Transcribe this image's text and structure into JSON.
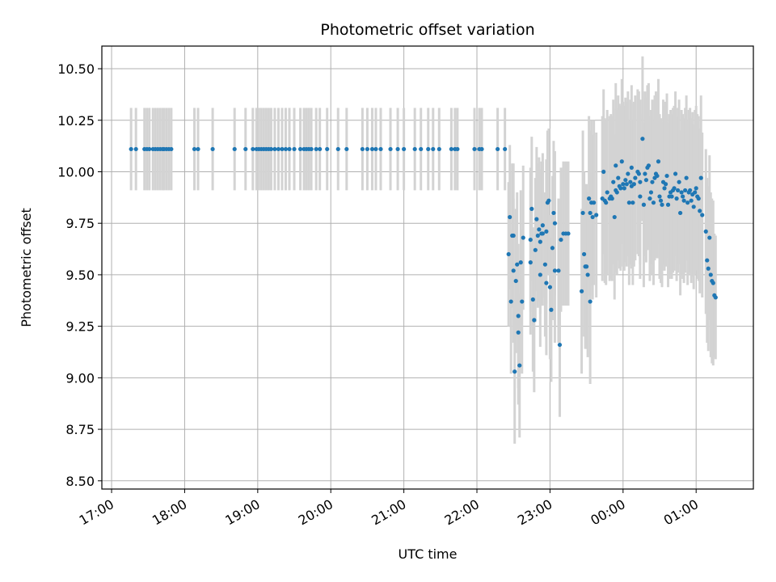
{
  "chart_data": {
    "type": "scatter",
    "title": "Photometric offset variation",
    "xlabel": "UTC time",
    "ylabel": "Photometric offset",
    "x_unit": "minutes after 17:00 UTC (x-axis wraps past midnight)",
    "xlim": [
      -8,
      527
    ],
    "ylim": [
      8.46,
      10.61
    ],
    "xticks": [
      {
        "x": 0,
        "label": "17:00"
      },
      {
        "x": 60,
        "label": "18:00"
      },
      {
        "x": 120,
        "label": "19:00"
      },
      {
        "x": 180,
        "label": "20:00"
      },
      {
        "x": 240,
        "label": "21:00"
      },
      {
        "x": 300,
        "label": "22:00"
      },
      {
        "x": 360,
        "label": "23:00"
      },
      {
        "x": 420,
        "label": "00:00"
      },
      {
        "x": 480,
        "label": "01:00"
      }
    ],
    "yticks": [
      {
        "y": 8.5,
        "label": "8.50"
      },
      {
        "y": 8.75,
        "label": "8.75"
      },
      {
        "y": 9.0,
        "label": "9.00"
      },
      {
        "y": 9.25,
        "label": "9.25"
      },
      {
        "y": 9.5,
        "label": "9.50"
      },
      {
        "y": 9.75,
        "label": "9.75"
      },
      {
        "y": 10.0,
        "label": "10.00"
      },
      {
        "y": 10.25,
        "label": "10.25"
      },
      {
        "y": 10.5,
        "label": "10.50"
      }
    ],
    "grid": true,
    "colors": {
      "points": "#1f77b4",
      "errorbars": "#d3d3d3"
    },
    "points": [
      [
        16,
        10.11,
        0.2
      ],
      [
        20,
        10.11,
        0.2
      ],
      [
        27,
        10.11,
        0.2
      ],
      [
        29,
        10.11,
        0.2
      ],
      [
        31,
        10.11,
        0.2
      ],
      [
        34,
        10.11,
        0.2
      ],
      [
        36,
        10.11,
        0.2
      ],
      [
        38,
        10.11,
        0.2
      ],
      [
        40,
        10.11,
        0.2
      ],
      [
        42,
        10.11,
        0.2
      ],
      [
        43,
        10.11,
        0.2
      ],
      [
        45,
        10.11,
        0.2
      ],
      [
        47,
        10.11,
        0.2
      ],
      [
        49,
        10.11,
        0.2
      ],
      [
        68,
        10.11,
        0.2
      ],
      [
        71,
        10.11,
        0.2
      ],
      [
        83,
        10.11,
        0.2
      ],
      [
        101,
        10.11,
        0.2
      ],
      [
        110,
        10.11,
        0.2
      ],
      [
        116,
        10.11,
        0.2
      ],
      [
        119,
        10.11,
        0.2
      ],
      [
        121,
        10.11,
        0.2
      ],
      [
        123,
        10.11,
        0.2
      ],
      [
        125,
        10.11,
        0.2
      ],
      [
        127,
        10.11,
        0.2
      ],
      [
        129,
        10.11,
        0.2
      ],
      [
        131,
        10.11,
        0.2
      ],
      [
        134,
        10.11,
        0.2
      ],
      [
        137,
        10.11,
        0.2
      ],
      [
        140,
        10.11,
        0.2
      ],
      [
        143,
        10.11,
        0.2
      ],
      [
        146,
        10.11,
        0.2
      ],
      [
        150,
        10.11,
        0.2
      ],
      [
        155,
        10.11,
        0.2
      ],
      [
        158,
        10.11,
        0.2
      ],
      [
        160,
        10.11,
        0.2
      ],
      [
        162,
        10.11,
        0.2
      ],
      [
        164,
        10.11,
        0.2
      ],
      [
        168,
        10.11,
        0.2
      ],
      [
        171,
        10.11,
        0.2
      ],
      [
        177,
        10.11,
        0.2
      ],
      [
        186,
        10.11,
        0.2
      ],
      [
        193,
        10.11,
        0.2
      ],
      [
        206,
        10.11,
        0.2
      ],
      [
        210,
        10.11,
        0.2
      ],
      [
        214,
        10.11,
        0.2
      ],
      [
        217,
        10.11,
        0.2
      ],
      [
        221,
        10.11,
        0.2
      ],
      [
        229,
        10.11,
        0.2
      ],
      [
        235,
        10.11,
        0.2
      ],
      [
        240,
        10.11,
        0.2
      ],
      [
        249,
        10.11,
        0.2
      ],
      [
        254,
        10.11,
        0.2
      ],
      [
        260,
        10.11,
        0.2
      ],
      [
        264,
        10.11,
        0.2
      ],
      [
        269,
        10.11,
        0.2
      ],
      [
        279,
        10.11,
        0.2
      ],
      [
        282,
        10.11,
        0.2
      ],
      [
        284,
        10.11,
        0.2
      ],
      [
        298,
        10.11,
        0.2
      ],
      [
        302,
        10.11,
        0.2
      ],
      [
        304,
        10.11,
        0.2
      ],
      [
        317,
        10.11,
        0.2
      ],
      [
        323,
        10.11,
        0.2
      ],
      [
        326,
        9.6,
        0.35
      ],
      [
        327,
        9.78,
        0.35
      ],
      [
        328,
        9.37,
        0.35
      ],
      [
        329,
        9.69,
        0.35
      ],
      [
        330,
        9.52,
        0.35
      ],
      [
        330,
        9.69,
        0.35
      ],
      [
        331,
        9.03,
        0.35
      ],
      [
        332,
        9.47,
        0.35
      ],
      [
        333,
        9.55,
        0.35
      ],
      [
        334,
        9.22,
        0.35
      ],
      [
        334,
        9.3,
        0.35
      ],
      [
        335,
        9.06,
        0.35
      ],
      [
        336,
        9.56,
        0.35
      ],
      [
        337,
        9.37,
        0.35
      ],
      [
        338,
        9.68,
        0.35
      ],
      [
        344,
        9.56,
        0.35
      ],
      [
        344,
        9.67,
        0.35
      ],
      [
        345,
        9.82,
        0.35
      ],
      [
        346,
        9.38,
        0.35
      ],
      [
        347,
        9.28,
        0.35
      ],
      [
        348,
        9.62,
        0.35
      ],
      [
        349,
        9.77,
        0.35
      ],
      [
        350,
        9.69,
        0.35
      ],
      [
        351,
        9.72,
        0.35
      ],
      [
        352,
        9.66,
        0.35
      ],
      [
        352,
        9.5,
        0.35
      ],
      [
        353,
        9.7,
        0.35
      ],
      [
        354,
        9.74,
        0.35
      ],
      [
        354,
        9.7,
        0.35
      ],
      [
        356,
        9.55,
        0.35
      ],
      [
        357,
        9.71,
        0.35
      ],
      [
        357,
        9.46,
        0.35
      ],
      [
        358,
        9.85,
        0.35
      ],
      [
        359,
        9.86,
        0.35
      ],
      [
        360,
        9.44,
        0.35
      ],
      [
        361,
        9.33,
        0.35
      ],
      [
        362,
        9.63,
        0.35
      ],
      [
        363,
        9.8,
        0.35
      ],
      [
        364,
        9.52,
        0.35
      ],
      [
        364,
        9.75,
        0.35
      ],
      [
        367,
        9.52,
        0.35
      ],
      [
        368,
        9.16,
        0.35
      ],
      [
        369,
        9.67,
        0.35
      ],
      [
        371,
        9.7,
        0.35
      ],
      [
        373,
        9.7,
        0.35
      ],
      [
        375,
        9.7,
        0.35
      ],
      [
        386,
        9.42,
        0.4
      ],
      [
        387,
        9.8,
        0.4
      ],
      [
        388,
        9.6,
        0.4
      ],
      [
        389,
        9.54,
        0.4
      ],
      [
        390,
        9.54,
        0.4
      ],
      [
        391,
        9.5,
        0.4
      ],
      [
        392,
        9.87,
        0.4
      ],
      [
        393,
        9.8,
        0.4
      ],
      [
        393,
        9.37,
        0.4
      ],
      [
        394,
        9.85,
        0.4
      ],
      [
        395,
        9.78,
        0.4
      ],
      [
        396,
        9.85,
        0.4
      ],
      [
        398,
        9.79,
        0.4
      ],
      [
        403,
        9.87,
        0.4
      ],
      [
        404,
        10.0,
        0.4
      ],
      [
        405,
        9.86,
        0.4
      ],
      [
        406,
        9.85,
        0.4
      ],
      [
        407,
        9.9,
        0.4
      ],
      [
        409,
        9.87,
        0.4
      ],
      [
        410,
        9.88,
        0.4
      ],
      [
        411,
        9.87,
        0.4
      ],
      [
        412,
        9.95,
        0.4
      ],
      [
        413,
        9.78,
        0.4
      ],
      [
        414,
        10.03,
        0.4
      ],
      [
        414,
        9.91,
        0.4
      ],
      [
        415,
        9.9,
        0.4
      ],
      [
        416,
        9.97,
        0.4
      ],
      [
        417,
        9.93,
        0.4
      ],
      [
        418,
        9.92,
        0.4
      ],
      [
        419,
        10.05,
        0.4
      ],
      [
        420,
        9.94,
        0.4
      ],
      [
        421,
        9.92,
        0.4
      ],
      [
        422,
        9.96,
        0.4
      ],
      [
        423,
        9.94,
        0.4
      ],
      [
        424,
        9.99,
        0.4
      ],
      [
        425,
        9.85,
        0.4
      ],
      [
        426,
        9.95,
        0.4
      ],
      [
        427,
        10.02,
        0.4
      ],
      [
        427,
        9.93,
        0.4
      ],
      [
        428,
        9.85,
        0.4
      ],
      [
        429,
        9.94,
        0.4
      ],
      [
        430,
        9.97,
        0.4
      ],
      [
        432,
        10.0,
        0.4
      ],
      [
        433,
        9.99,
        0.4
      ],
      [
        434,
        9.88,
        0.4
      ],
      [
        434,
        9.95,
        0.4
      ],
      [
        436,
        10.16,
        0.4
      ],
      [
        437,
        9.84,
        0.4
      ],
      [
        438,
        9.99,
        0.4
      ],
      [
        439,
        9.96,
        0.4
      ],
      [
        440,
        10.02,
        0.4
      ],
      [
        441,
        10.03,
        0.4
      ],
      [
        442,
        9.87,
        0.4
      ],
      [
        443,
        9.9,
        0.4
      ],
      [
        444,
        9.95,
        0.4
      ],
      [
        445,
        9.85,
        0.4
      ],
      [
        446,
        9.97,
        0.4
      ],
      [
        447,
        9.99,
        0.4
      ],
      [
        448,
        9.98,
        0.4
      ],
      [
        449,
        10.05,
        0.4
      ],
      [
        450,
        9.88,
        0.4
      ],
      [
        451,
        9.86,
        0.4
      ],
      [
        452,
        9.84,
        0.4
      ],
      [
        453,
        9.95,
        0.4
      ],
      [
        454,
        9.92,
        0.4
      ],
      [
        455,
        9.94,
        0.4
      ],
      [
        456,
        9.98,
        0.4
      ],
      [
        457,
        9.84,
        0.4
      ],
      [
        458,
        9.88,
        0.4
      ],
      [
        459,
        9.9,
        0.4
      ],
      [
        460,
        9.88,
        0.4
      ],
      [
        461,
        9.91,
        0.4
      ],
      [
        462,
        9.92,
        0.4
      ],
      [
        463,
        9.99,
        0.4
      ],
      [
        464,
        9.87,
        0.4
      ],
      [
        465,
        9.91,
        0.4
      ],
      [
        466,
        9.95,
        0.4
      ],
      [
        467,
        9.8,
        0.4
      ],
      [
        468,
        9.9,
        0.4
      ],
      [
        469,
        9.88,
        0.4
      ],
      [
        470,
        9.86,
        0.4
      ],
      [
        471,
        9.91,
        0.4
      ],
      [
        472,
        9.97,
        0.4
      ],
      [
        473,
        9.85,
        0.4
      ],
      [
        474,
        9.9,
        0.4
      ],
      [
        475,
        9.91,
        0.4
      ],
      [
        476,
        9.86,
        0.4
      ],
      [
        477,
        9.89,
        0.4
      ],
      [
        478,
        9.83,
        0.4
      ],
      [
        479,
        9.9,
        0.4
      ],
      [
        480,
        9.92,
        0.4
      ],
      [
        481,
        9.88,
        0.4
      ],
      [
        482,
        9.87,
        0.4
      ],
      [
        483,
        9.81,
        0.4
      ],
      [
        484,
        9.97,
        0.4
      ],
      [
        485,
        9.79,
        0.4
      ],
      [
        488,
        9.71,
        0.4
      ],
      [
        489,
        9.57,
        0.4
      ],
      [
        490,
        9.53,
        0.4
      ],
      [
        491,
        9.68,
        0.4
      ],
      [
        492,
        9.5,
        0.4
      ],
      [
        493,
        9.47,
        0.4
      ],
      [
        494,
        9.46,
        0.4
      ],
      [
        495,
        9.4,
        0.3
      ],
      [
        496,
        9.39,
        0.3
      ]
    ]
  }
}
